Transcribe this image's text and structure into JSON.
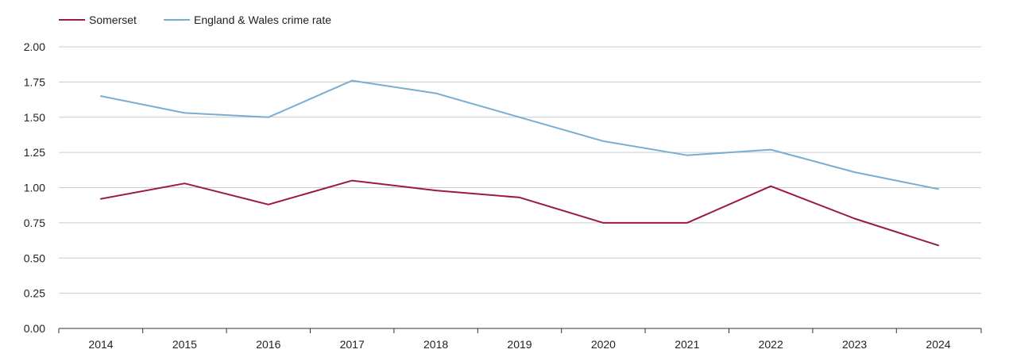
{
  "chart_data": {
    "type": "line",
    "title": "",
    "xlabel": "",
    "ylabel": "",
    "categories": [
      "2014",
      "2015",
      "2016",
      "2017",
      "2018",
      "2019",
      "2020",
      "2021",
      "2022",
      "2023",
      "2024"
    ],
    "ylim": [
      0,
      2
    ],
    "yticks": [
      "0.00",
      "0.25",
      "0.50",
      "0.75",
      "1.00",
      "1.25",
      "1.50",
      "1.75",
      "2.00"
    ],
    "ytick_values": [
      0,
      0.25,
      0.5,
      0.75,
      1.0,
      1.25,
      1.5,
      1.75,
      2.0
    ],
    "grid": true,
    "legend_position": "top-left",
    "series": [
      {
        "name": "Somerset",
        "color": "#9b1b3c",
        "values": [
          0.92,
          1.03,
          0.88,
          1.05,
          0.98,
          0.93,
          0.75,
          0.75,
          1.01,
          0.78,
          0.59
        ]
      },
      {
        "name": "England & Wales crime rate",
        "color": "#7aadcf",
        "values": [
          1.65,
          1.53,
          1.5,
          1.76,
          1.67,
          1.5,
          1.33,
          1.23,
          1.27,
          1.11,
          0.99
        ]
      }
    ]
  }
}
